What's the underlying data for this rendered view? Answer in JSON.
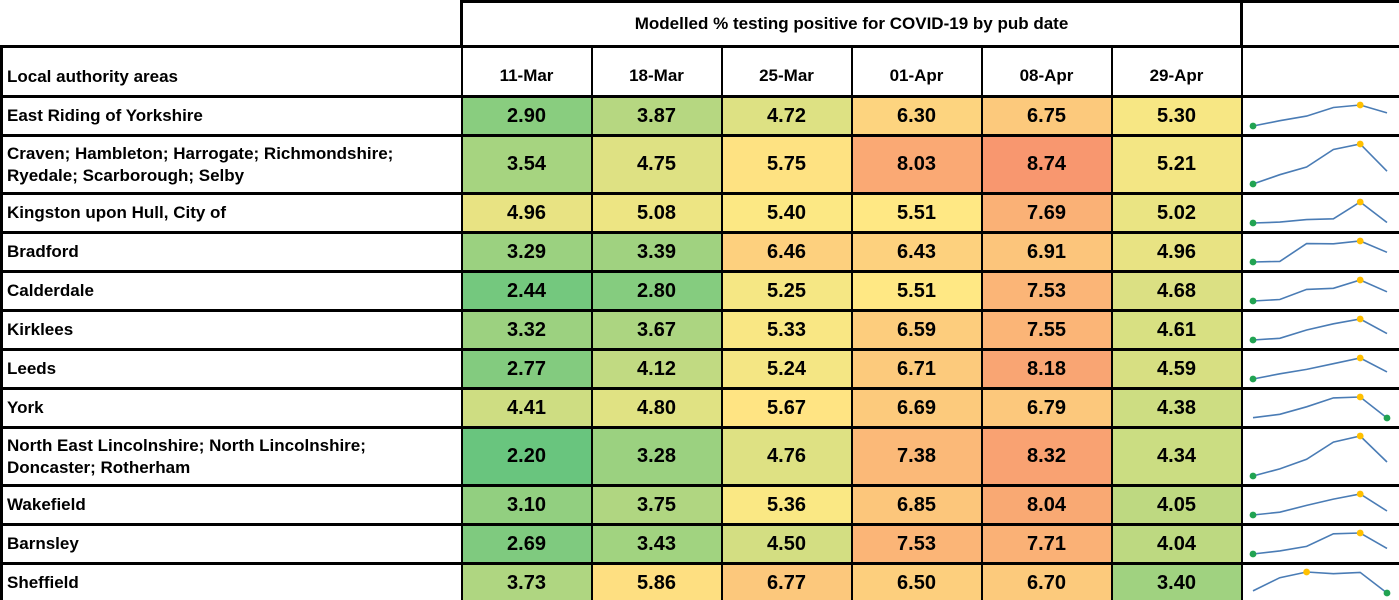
{
  "chart_data": {
    "type": "heatmap",
    "title": "Modelled % testing positive for COVID-19 by pub date",
    "row_label_header": "Local authority areas",
    "columns": [
      "11-Mar",
      "18-Mar",
      "25-Mar",
      "01-Apr",
      "08-Apr",
      "29-Apr"
    ],
    "rows": [
      {
        "area": "East Riding of Yorkshire",
        "values": [
          2.9,
          3.87,
          4.72,
          6.3,
          6.75,
          5.3
        ]
      },
      {
        "area": "Craven; Hambleton; Harrogate; Richmondshire; Ryedale; Scarborough; Selby",
        "values": [
          3.54,
          4.75,
          5.75,
          8.03,
          8.74,
          5.21
        ]
      },
      {
        "area": "Kingston upon Hull, City of",
        "values": [
          4.96,
          5.08,
          5.4,
          5.51,
          7.69,
          5.02
        ]
      },
      {
        "area": "Bradford",
        "values": [
          3.29,
          3.39,
          6.46,
          6.43,
          6.91,
          4.96
        ]
      },
      {
        "area": "Calderdale",
        "values": [
          2.44,
          2.8,
          5.25,
          5.51,
          7.53,
          4.68
        ]
      },
      {
        "area": "Kirklees",
        "values": [
          3.32,
          3.67,
          5.33,
          6.59,
          7.55,
          4.61
        ]
      },
      {
        "area": "Leeds",
        "values": [
          2.77,
          4.12,
          5.24,
          6.71,
          8.18,
          4.59
        ]
      },
      {
        "area": "York",
        "values": [
          4.41,
          4.8,
          5.67,
          6.69,
          6.79,
          4.38
        ]
      },
      {
        "area": "North East Lincolnshire; North Lincolnshire; Doncaster; Rotherham",
        "values": [
          2.2,
          3.28,
          4.76,
          7.38,
          8.32,
          4.34
        ]
      },
      {
        "area": "Wakefield",
        "values": [
          3.1,
          3.75,
          5.36,
          6.85,
          8.04,
          4.05
        ]
      },
      {
        "area": "Barnsley",
        "values": [
          2.69,
          3.43,
          4.5,
          7.53,
          7.71,
          4.04
        ]
      },
      {
        "area": "Sheffield",
        "values": [
          3.73,
          5.86,
          6.77,
          6.5,
          6.7,
          3.4
        ]
      }
    ],
    "value_format": "2-decimals",
    "heatmap_scale": {
      "min_value": 2.2,
      "mid_value": 5.47,
      "max_value": 8.74,
      "min_color": "#69C57E",
      "mid_color": "#FFE984",
      "max_color": "#F8976F"
    },
    "sparkline": {
      "line_color": "#4A7CB5",
      "high_marker_color": "#FFC000",
      "low_marker_color": "#21A352",
      "high_marker_meaning": "high point",
      "low_marker_meaning": "low point"
    }
  }
}
